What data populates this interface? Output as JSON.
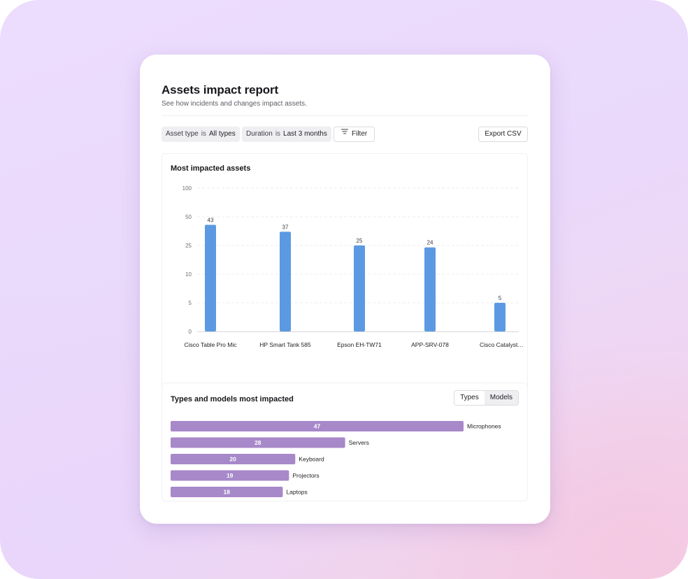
{
  "report": {
    "title": "Assets impact report",
    "subtitle": "See how incidents and changes impact assets."
  },
  "filters": [
    {
      "key": "Asset type",
      "op": "is",
      "value": "All types"
    },
    {
      "key": "Duration",
      "op": "is",
      "value": "Last 3 months"
    }
  ],
  "toolbar": {
    "filter_label": "Filter",
    "export_label": "Export CSV"
  },
  "icons": {
    "filter": "filter-icon"
  },
  "colors": {
    "bar_blue": "#5b9ae2",
    "bar_purple": "#a788c9"
  },
  "bar_panel": {
    "title": "Most impacted assets"
  },
  "types_panel": {
    "title": "Types and models most impacted",
    "toggle": [
      {
        "label": "Types",
        "active": false
      },
      {
        "label": "Models",
        "active": true
      }
    ]
  },
  "chart_data": [
    {
      "type": "bar",
      "title": "Most impacted assets",
      "categories": [
        "Cisco Table Pro Mic",
        "HP Smart Tank 585",
        "Epson EH-TW71",
        "APP-SRV-078",
        "Cisco Catalyst…"
      ],
      "values": [
        43,
        37,
        25,
        24,
        5
      ],
      "yticks": [
        0,
        5,
        10,
        25,
        50,
        100
      ],
      "grid": true
    },
    {
      "type": "bar",
      "orientation": "horizontal",
      "title": "Types and models most impacted",
      "categories": [
        "Microphones",
        "Servers",
        "Keyboard",
        "Projectors",
        "Laptops"
      ],
      "values": [
        47,
        28,
        20,
        19,
        18
      ]
    }
  ]
}
